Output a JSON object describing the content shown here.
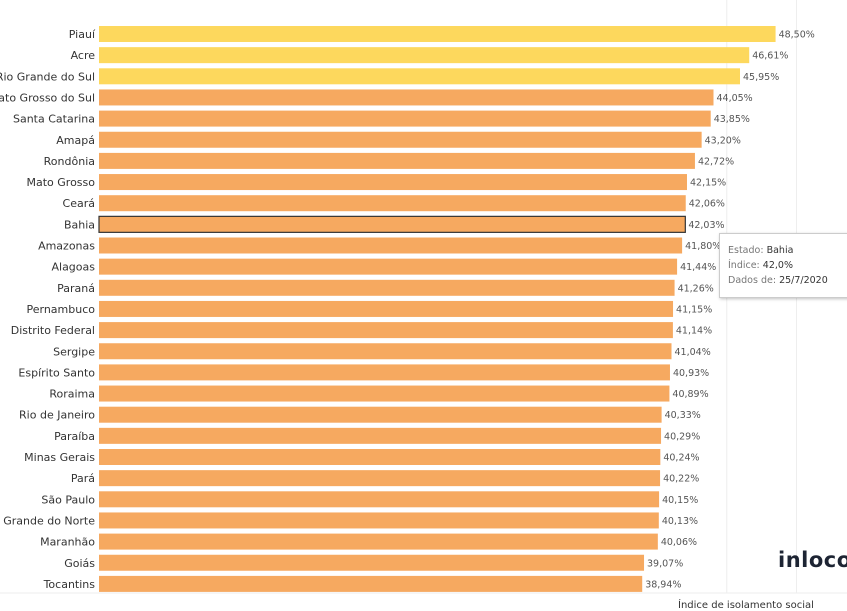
{
  "chart_data": {
    "type": "bar",
    "orientation": "horizontal",
    "xlabel": "Índice de isolamento social",
    "xlim": [
      0,
      50
    ],
    "gridlines": [
      45,
      50
    ],
    "categories": [
      "Piauí",
      "Acre",
      "Rio Grande do Sul",
      "Mato Grosso do Sul",
      "Santa Catarina",
      "Amapá",
      "Rondônia",
      "Mato Grosso",
      "Ceará",
      "Bahia",
      "Amazonas",
      "Alagoas",
      "Paraná",
      "Pernambuco",
      "Distrito Federal",
      "Sergipe",
      "Espírito Santo",
      "Roraima",
      "Rio de Janeiro",
      "Paraíba",
      "Minas Gerais",
      "Pará",
      "São Paulo",
      "Rio Grande do Norte",
      "Maranhão",
      "Goiás",
      "Tocantins"
    ],
    "values": [
      48.5,
      46.61,
      45.95,
      44.05,
      43.85,
      43.2,
      42.72,
      42.15,
      42.06,
      42.03,
      41.8,
      41.44,
      41.26,
      41.15,
      41.14,
      41.04,
      40.93,
      40.89,
      40.33,
      40.29,
      40.24,
      40.22,
      40.15,
      40.13,
      40.06,
      39.07,
      38.94
    ],
    "value_labels": [
      "48,50%",
      "46,61%",
      "45,95%",
      "44,05%",
      "43,85%",
      "43,20%",
      "42,72%",
      "42,15%",
      "42,06%",
      "42,03%",
      "41,80%",
      "41,44%",
      "41,26%",
      "41,15%",
      "41,14%",
      "41,04%",
      "40,93%",
      "40,89%",
      "40,33%",
      "40,29%",
      "40,24%",
      "40,22%",
      "40,15%",
      "40,13%",
      "40,06%",
      "39,07%",
      "38,94%"
    ],
    "highlight_top_n": 3,
    "selected": "Bahia",
    "colors": {
      "top": "#FDD85D",
      "default": "#F6A960",
      "grid": "#eeeeee"
    }
  },
  "tooltip": {
    "estado_label": "Estado:",
    "estado_value": "Bahia",
    "indice_label": "Índice:",
    "indice_value": "42,0%",
    "dados_label": "Dados de:",
    "dados_value": "25/7/2020"
  },
  "brand": {
    "logo": "inloco"
  }
}
